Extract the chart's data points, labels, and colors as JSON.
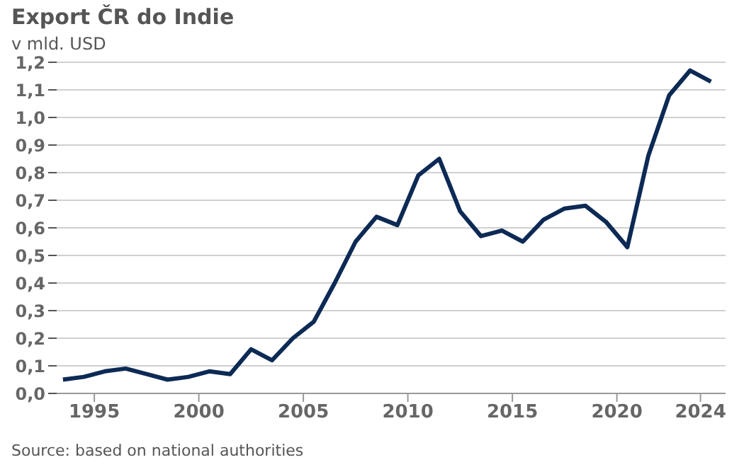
{
  "chart_data": {
    "type": "line",
    "title": "Export ČR do Indie",
    "ylabel": "v mld. USD",
    "x": [
      1993.5,
      1994.5,
      1995.5,
      1996.5,
      1997.5,
      1998.5,
      1999.5,
      2000.5,
      2001.5,
      2002.5,
      2003.5,
      2004.5,
      2005.5,
      2006.5,
      2007.5,
      2008.5,
      2009.5,
      2010.5,
      2011.5,
      2012.5,
      2013.5,
      2014.5,
      2015.5,
      2016.5,
      2017.5,
      2018.5,
      2019.5,
      2020.5,
      2021.5,
      2022.5,
      2023.5,
      2024.5
    ],
    "series": [
      {
        "color": "#0d2a55",
        "values": [
          0.05,
          0.06,
          0.08,
          0.09,
          0.07,
          0.05,
          0.06,
          0.08,
          0.07,
          0.16,
          0.12,
          0.2,
          0.26,
          0.4,
          0.55,
          0.64,
          0.61,
          0.79,
          0.85,
          0.66,
          0.57,
          0.59,
          0.55,
          0.63,
          0.67,
          0.68,
          0.62,
          0.53,
          0.86,
          1.08,
          1.17,
          1.13
        ]
      }
    ],
    "xlim": [
      1993.2,
      2025.2
    ],
    "xticks": [
      1995,
      2000,
      2005,
      2010,
      2015,
      2020,
      2024
    ],
    "ylim": [
      0,
      1.2
    ],
    "yticks": [
      {
        "value": 0,
        "label": "0,0"
      },
      {
        "value": 0.1,
        "label": "0,1"
      },
      {
        "value": 0.2,
        "label": "0,2"
      },
      {
        "value": 0.3,
        "label": "0,3"
      },
      {
        "value": 0.4,
        "label": "0,4"
      },
      {
        "value": 0.5,
        "label": "0,5"
      },
      {
        "value": 0.6,
        "label": "0,6"
      },
      {
        "value": 0.7,
        "label": "0,7"
      },
      {
        "value": 0.8,
        "label": "0,8"
      },
      {
        "value": 0.9,
        "label": "0,9"
      },
      {
        "value": 1.0,
        "label": "1,0"
      },
      {
        "value": 1.1,
        "label": "1,1"
      },
      {
        "value": 1.2,
        "label": "1,2"
      }
    ],
    "grid": "y",
    "marker": "none",
    "line_style": "solid",
    "legend": false,
    "annotations": [
      "Source: based on national authorities"
    ]
  }
}
